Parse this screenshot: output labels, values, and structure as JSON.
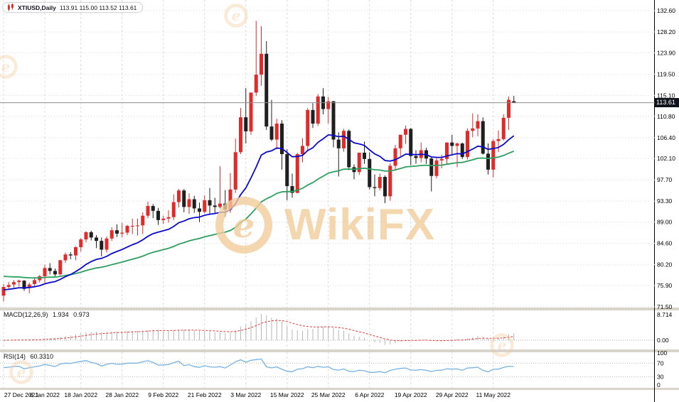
{
  "quote_bar": {
    "symbol": "XTIUSD,Daily",
    "ohlc": "113.91 115.00 113.52 113.61"
  },
  "watermark": {
    "brand": "WikiFX",
    "color": "#f2cc9c"
  },
  "price_axis": {
    "labels": [
      "132.60",
      "128.20",
      "123.90",
      "119.50",
      "115.10",
      "110.80",
      "106.40",
      "102.10",
      "97.70",
      "93.30",
      "89.00",
      "84.60",
      "80.20",
      "75.90",
      "71.50"
    ],
    "current": "113.61"
  },
  "time_axis": {
    "labels": [
      {
        "text": "27 Dec 2021",
        "index": 0
      },
      {
        "text": "6 Jan 2022",
        "index": 8
      },
      {
        "text": "18 Jan 2022",
        "index": 15
      },
      {
        "text": "28 Jan 2022",
        "index": 23
      },
      {
        "text": "9 Feb 2022",
        "index": 31
      },
      {
        "text": "21 Feb 2022",
        "index": 39
      },
      {
        "text": "3 Mar 2022",
        "index": 47
      },
      {
        "text": "15 Mar 2022",
        "index": 55
      },
      {
        "text": "25 Mar 2022",
        "index": 63
      },
      {
        "text": "6 Apr 2022",
        "index": 71
      },
      {
        "text": "19 Apr 2022",
        "index": 79
      },
      {
        "text": "29 Apr 2022",
        "index": 87
      },
      {
        "text": "11 May 2022",
        "index": 95
      }
    ]
  },
  "indicators": {
    "macd": {
      "label": "MACD(12,26,9)",
      "value_main": "1.934",
      "value_signal": "0.973",
      "axis": [
        "8.714",
        "0.00"
      ]
    },
    "rsi": {
      "label": "RSI(14)",
      "value": "60.3310",
      "axis": [
        "100",
        "70",
        "30",
        "0"
      ]
    }
  },
  "chart_data": {
    "type": "candlestick",
    "title": "XTIUSD Daily",
    "ylim": [
      71.5,
      132.6
    ],
    "up_color": "#e02b2b",
    "down_color": "#1f1f1f",
    "current_price": 113.61,
    "ma_fast": {
      "type": "ema",
      "period": 18,
      "seed": 75.0,
      "color": "#0a0acd"
    },
    "ma_slow": {
      "type": "ema",
      "period": 48,
      "seed": 77.8,
      "color": "#2f9e5e"
    },
    "macd": {
      "fast": 12,
      "slow": 26,
      "signal": 9,
      "histogram_color": "#b6b6b6",
      "signal_color": "#e23b3b"
    },
    "rsi": {
      "period": 14,
      "color": "#79b2e2",
      "levels": [
        70,
        30
      ]
    },
    "candles": [
      [
        73.8,
        76.2,
        72.6,
        75.6
      ],
      [
        75.6,
        76.6,
        75.2,
        76.0
      ],
      [
        76.1,
        77.0,
        75.5,
        76.6
      ],
      [
        76.6,
        77.1,
        75.7,
        76.9
      ],
      [
        76.9,
        77.0,
        74.8,
        75.2
      ],
      [
        75.4,
        76.5,
        74.3,
        76.1
      ],
      [
        76.2,
        77.5,
        75.6,
        77.0
      ],
      [
        77.0,
        78.1,
        76.5,
        77.8
      ],
      [
        77.8,
        80.2,
        76.4,
        79.5
      ],
      [
        79.5,
        80.5,
        78.2,
        78.9
      ],
      [
        78.9,
        79.4,
        77.8,
        78.2
      ],
      [
        78.2,
        81.2,
        78.0,
        81.1
      ],
      [
        81.1,
        82.7,
        80.6,
        82.3
      ],
      [
        82.3,
        82.8,
        81.3,
        82.1
      ],
      [
        82.1,
        84.0,
        81.1,
        83.8
      ],
      [
        83.8,
        85.7,
        82.9,
        85.4
      ],
      [
        85.4,
        87.1,
        84.8,
        86.9
      ],
      [
        86.9,
        87.2,
        85.2,
        85.8
      ],
      [
        85.8,
        86.3,
        83.6,
        85.1
      ],
      [
        85.1,
        85.8,
        81.9,
        83.3
      ],
      [
        83.3,
        86.0,
        82.7,
        85.6
      ],
      [
        85.6,
        87.9,
        85.1,
        87.3
      ],
      [
        87.3,
        88.5,
        85.9,
        86.6
      ],
      [
        86.6,
        88.8,
        85.8,
        86.8
      ],
      [
        86.8,
        88.4,
        86.3,
        88.2
      ],
      [
        88.2,
        89.7,
        86.5,
        88.2
      ],
      [
        88.2,
        89.7,
        86.2,
        88.3
      ],
      [
        88.3,
        91.0,
        86.5,
        90.3
      ],
      [
        90.3,
        93.2,
        89.8,
        92.3
      ],
      [
        92.3,
        92.7,
        89.8,
        91.3
      ],
      [
        91.3,
        91.9,
        88.4,
        89.4
      ],
      [
        89.4,
        90.3,
        88.6,
        89.7
      ],
      [
        89.7,
        91.4,
        88.9,
        90.0
      ],
      [
        90.0,
        94.7,
        89.4,
        93.1
      ],
      [
        93.1,
        95.8,
        92.0,
        95.5
      ],
      [
        95.5,
        95.8,
        91.0,
        92.1
      ],
      [
        92.1,
        94.9,
        90.7,
        93.7
      ],
      [
        93.7,
        94.4,
        90.9,
        91.8
      ],
      [
        91.8,
        93.0,
        89.0,
        91.1
      ],
      [
        91.1,
        94.5,
        90.8,
        93.5
      ],
      [
        93.5,
        96.0,
        90.7,
        92.4
      ],
      [
        92.4,
        94.0,
        90.7,
        92.1
      ],
      [
        92.1,
        100.5,
        91.8,
        92.8
      ],
      [
        92.8,
        95.6,
        90.1,
        91.6
      ],
      [
        91.6,
        99.1,
        90.9,
        95.7
      ],
      [
        95.7,
        106.2,
        95.0,
        103.4
      ],
      [
        103.4,
        112.5,
        103.0,
        110.6
      ],
      [
        110.6,
        116.6,
        105.2,
        107.7
      ],
      [
        107.7,
        115.7,
        107.0,
        115.7
      ],
      [
        115.7,
        130.5,
        115.0,
        119.4
      ],
      [
        119.4,
        129.4,
        117.1,
        123.7
      ],
      [
        123.7,
        126.3,
        108.0,
        108.7
      ],
      [
        108.7,
        114.2,
        105.7,
        106.0
      ],
      [
        106.0,
        110.3,
        104.0,
        109.3
      ],
      [
        109.3,
        110.0,
        99.8,
        103.0
      ],
      [
        103.0,
        104.0,
        93.5,
        96.4
      ],
      [
        96.4,
        99.0,
        94.0,
        95.0
      ],
      [
        95.0,
        103.3,
        94.9,
        103.0
      ],
      [
        103.0,
        106.3,
        101.3,
        104.7
      ],
      [
        104.7,
        112.5,
        103.6,
        112.1
      ],
      [
        112.1,
        113.5,
        108.4,
        109.3
      ],
      [
        109.3,
        115.4,
        108.8,
        114.9
      ],
      [
        114.9,
        116.6,
        111.2,
        112.3
      ],
      [
        112.3,
        114.8,
        109.3,
        113.9
      ],
      [
        113.9,
        114.0,
        104.4,
        106.0
      ],
      [
        106.0,
        107.5,
        98.4,
        104.2
      ],
      [
        104.2,
        108.2,
        103.5,
        107.8
      ],
      [
        107.8,
        108.1,
        99.7,
        100.3
      ],
      [
        100.3,
        100.9,
        97.8,
        99.3
      ],
      [
        99.3,
        103.3,
        98.7,
        103.3
      ],
      [
        103.3,
        105.6,
        101.0,
        102.0
      ],
      [
        102.0,
        103.4,
        95.7,
        96.2
      ],
      [
        96.2,
        98.8,
        94.3,
        96.0
      ],
      [
        96.0,
        99.0,
        95.5,
        98.3
      ],
      [
        98.3,
        98.6,
        92.9,
        94.3
      ],
      [
        94.3,
        101.1,
        93.4,
        100.6
      ],
      [
        100.6,
        104.9,
        99.6,
        104.2
      ],
      [
        104.2,
        107.0,
        102.6,
        107.0
      ],
      [
        107.0,
        108.9,
        105.1,
        108.2
      ],
      [
        108.2,
        108.4,
        100.7,
        102.6
      ],
      [
        102.6,
        103.8,
        101.0,
        102.2
      ],
      [
        102.2,
        105.4,
        101.3,
        103.8
      ],
      [
        103.8,
        104.3,
        101.0,
        102.1
      ],
      [
        102.1,
        102.3,
        95.3,
        98.5
      ],
      [
        98.5,
        102.3,
        98.0,
        101.7
      ],
      [
        101.7,
        102.9,
        100.1,
        102.0
      ],
      [
        102.0,
        105.4,
        101.0,
        105.4
      ],
      [
        105.4,
        107.0,
        103.0,
        104.7
      ],
      [
        104.7,
        105.4,
        100.3,
        105.2
      ],
      [
        105.2,
        105.4,
        102.0,
        102.4
      ],
      [
        102.4,
        108.3,
        101.9,
        107.8
      ],
      [
        107.8,
        111.4,
        106.5,
        108.3
      ],
      [
        108.3,
        111.2,
        106.7,
        109.8
      ],
      [
        109.8,
        110.6,
        102.9,
        103.1
      ],
      [
        103.1,
        105.2,
        98.8,
        99.8
      ],
      [
        99.8,
        106.1,
        98.2,
        105.7
      ],
      [
        105.7,
        107.9,
        103.4,
        106.1
      ],
      [
        106.1,
        111.2,
        105.8,
        110.5
      ],
      [
        110.5,
        114.9,
        108.0,
        114.2
      ],
      [
        113.91,
        115.0,
        113.52,
        113.61
      ]
    ]
  }
}
